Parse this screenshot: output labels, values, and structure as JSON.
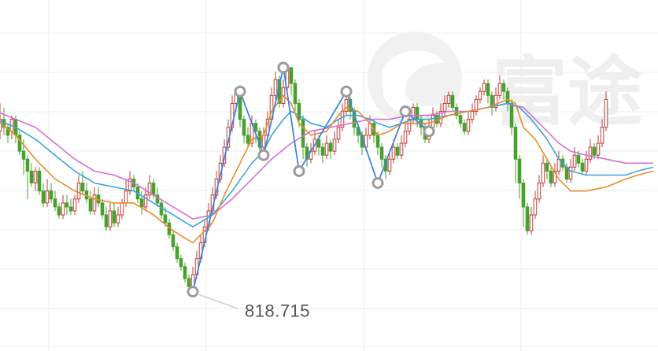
{
  "watermark": {
    "logo_icon": "futu-logo-icon",
    "text": "富途"
  },
  "colors": {
    "up": "#c23b33",
    "down": "#48a12f",
    "ma_fast": "#e98b2a",
    "ma_mid": "#3ba4e0",
    "ma_slow": "#d86fd6",
    "zigzag": "#3f86e0",
    "marker": "#9c9c9c",
    "grid": "#ececec",
    "callout_line": "#d8d8d8",
    "callout_text": "#555555"
  },
  "chart_data": {
    "type": "candlestick",
    "ylim": [
      805,
      890
    ],
    "grid": true,
    "low_label": "818.715",
    "zigzag_points": [
      {
        "x": 50,
        "y": 818.715
      },
      {
        "x": 62,
        "y": 869
      },
      {
        "x": 68,
        "y": 853
      },
      {
        "x": 73,
        "y": 875
      },
      {
        "x": 77,
        "y": 849
      },
      {
        "x": 89,
        "y": 869
      },
      {
        "x": 97,
        "y": 846
      },
      {
        "x": 104,
        "y": 864
      },
      {
        "x": 110,
        "y": 859
      }
    ],
    "ma_fast": [
      [
        0,
        862
      ],
      [
        5,
        858
      ],
      [
        10,
        852
      ],
      [
        15,
        847
      ],
      [
        20,
        844
      ],
      [
        25,
        842
      ],
      [
        30,
        841
      ],
      [
        35,
        841
      ],
      [
        40,
        838
      ],
      [
        45,
        834
      ],
      [
        50,
        831
      ],
      [
        55,
        836
      ],
      [
        58,
        843
      ],
      [
        62,
        851
      ],
      [
        65,
        857
      ],
      [
        68,
        858
      ],
      [
        70,
        864
      ],
      [
        73,
        868
      ],
      [
        75,
        866
      ],
      [
        77,
        861
      ],
      [
        80,
        858
      ],
      [
        84,
        859
      ],
      [
        87,
        863
      ],
      [
        89,
        865
      ],
      [
        92,
        864
      ],
      [
        95,
        861
      ],
      [
        97,
        858
      ],
      [
        100,
        859
      ],
      [
        103,
        861
      ],
      [
        106,
        861
      ],
      [
        110,
        861
      ],
      [
        115,
        863
      ],
      [
        120,
        864
      ],
      [
        125,
        865
      ],
      [
        130,
        867
      ],
      [
        132,
        866
      ],
      [
        134,
        860
      ],
      [
        137,
        857
      ],
      [
        140,
        852
      ],
      [
        143,
        847
      ],
      [
        146,
        844
      ],
      [
        150,
        844
      ],
      [
        155,
        845
      ],
      [
        160,
        847
      ],
      [
        163,
        848
      ],
      [
        167,
        849
      ]
    ],
    "ma_mid": [
      [
        0,
        862
      ],
      [
        5,
        860
      ],
      [
        10,
        857
      ],
      [
        15,
        853
      ],
      [
        20,
        849
      ],
      [
        25,
        846
      ],
      [
        30,
        845
      ],
      [
        35,
        844
      ],
      [
        40,
        841
      ],
      [
        45,
        838
      ],
      [
        50,
        835
      ],
      [
        55,
        838
      ],
      [
        60,
        844
      ],
      [
        65,
        851
      ],
      [
        68,
        854
      ],
      [
        70,
        858
      ],
      [
        73,
        862
      ],
      [
        75,
        864
      ],
      [
        77,
        863
      ],
      [
        80,
        861
      ],
      [
        84,
        860
      ],
      [
        87,
        862
      ],
      [
        89,
        863
      ],
      [
        92,
        863
      ],
      [
        95,
        862
      ],
      [
        97,
        861
      ],
      [
        100,
        860
      ],
      [
        103,
        861
      ],
      [
        106,
        862
      ],
      [
        110,
        862
      ],
      [
        115,
        863
      ],
      [
        120,
        864
      ],
      [
        125,
        865
      ],
      [
        130,
        866
      ],
      [
        133,
        865
      ],
      [
        136,
        862
      ],
      [
        140,
        857
      ],
      [
        143,
        852
      ],
      [
        146,
        849
      ],
      [
        150,
        848
      ],
      [
        155,
        848
      ],
      [
        160,
        848
      ],
      [
        163,
        849
      ],
      [
        167,
        850
      ]
    ],
    "ma_slow": [
      [
        0,
        864
      ],
      [
        5,
        862
      ],
      [
        10,
        860
      ],
      [
        15,
        856
      ],
      [
        20,
        852
      ],
      [
        25,
        849
      ],
      [
        30,
        848
      ],
      [
        35,
        846
      ],
      [
        40,
        843
      ],
      [
        45,
        840
      ],
      [
        50,
        837
      ],
      [
        55,
        838
      ],
      [
        60,
        842
      ],
      [
        65,
        847
      ],
      [
        70,
        852
      ],
      [
        75,
        856
      ],
      [
        80,
        859
      ],
      [
        85,
        860
      ],
      [
        90,
        861
      ],
      [
        95,
        862
      ],
      [
        100,
        862
      ],
      [
        105,
        863
      ],
      [
        110,
        863
      ],
      [
        115,
        864
      ],
      [
        120,
        864
      ],
      [
        125,
        865
      ],
      [
        130,
        866
      ],
      [
        134,
        865
      ],
      [
        137,
        862
      ],
      [
        140,
        859
      ],
      [
        143,
        856
      ],
      [
        146,
        854
      ],
      [
        150,
        853
      ],
      [
        155,
        852
      ],
      [
        160,
        851
      ],
      [
        163,
        851
      ],
      [
        167,
        851
      ]
    ],
    "candles": [
      [
        863,
        866,
        859,
        858
      ],
      [
        859,
        862,
        866,
        857
      ],
      [
        862,
        860,
        865,
        858
      ],
      [
        860,
        858,
        861,
        856
      ],
      [
        859,
        862,
        863,
        857
      ],
      [
        862,
        858,
        863,
        856
      ],
      [
        858,
        854,
        859,
        853
      ],
      [
        854,
        852,
        857,
        848
      ],
      [
        852,
        849,
        853,
        842
      ],
      [
        849,
        846,
        851,
        845
      ],
      [
        846,
        849,
        850,
        844
      ],
      [
        849,
        844,
        850,
        843
      ],
      [
        844,
        841,
        846,
        840
      ],
      [
        841,
        844,
        847,
        840
      ],
      [
        844,
        842,
        846,
        841
      ],
      [
        842,
        840,
        844,
        839
      ],
      [
        840,
        838,
        841,
        837
      ],
      [
        838,
        841,
        843,
        837
      ],
      [
        841,
        840,
        843,
        838
      ],
      [
        840,
        839,
        842,
        838
      ],
      [
        839,
        842,
        843,
        838
      ],
      [
        842,
        846,
        848,
        841
      ],
      [
        846,
        844,
        849,
        843
      ],
      [
        844,
        842,
        846,
        841
      ],
      [
        842,
        839,
        844,
        838
      ],
      [
        839,
        843,
        845,
        838
      ],
      [
        843,
        841,
        845,
        840
      ],
      [
        841,
        838,
        842,
        837
      ],
      [
        838,
        835,
        840,
        834
      ],
      [
        835,
        839,
        841,
        834
      ],
      [
        839,
        836,
        841,
        835
      ],
      [
        836,
        838,
        840,
        835
      ],
      [
        838,
        841,
        842,
        837
      ],
      [
        841,
        844,
        847,
        840
      ],
      [
        844,
        847,
        849,
        843
      ],
      [
        847,
        845,
        848,
        844
      ],
      [
        845,
        842,
        846,
        841
      ],
      [
        842,
        840,
        844,
        838
      ],
      [
        840,
        843,
        845,
        839
      ],
      [
        843,
        846,
        848,
        842
      ],
      [
        846,
        843,
        847,
        842
      ],
      [
        843,
        841,
        845,
        840
      ],
      [
        841,
        838,
        842,
        837
      ],
      [
        838,
        836,
        840,
        835
      ],
      [
        836,
        833,
        837,
        832
      ],
      [
        833,
        830,
        834,
        829
      ],
      [
        830,
        827,
        831,
        826
      ],
      [
        827,
        825,
        828,
        824
      ],
      [
        825,
        822,
        826,
        821
      ],
      [
        822,
        820,
        823,
        819
      ],
      [
        820,
        823,
        825,
        819
      ],
      [
        823,
        827,
        829,
        822
      ],
      [
        827,
        831,
        833,
        826
      ],
      [
        831,
        835,
        837,
        830
      ],
      [
        835,
        839,
        841,
        834
      ],
      [
        839,
        843,
        845,
        838
      ],
      [
        843,
        847,
        849,
        842
      ],
      [
        847,
        851,
        853,
        846
      ],
      [
        851,
        855,
        857,
        850
      ],
      [
        855,
        860,
        862,
        854
      ],
      [
        860,
        866,
        868,
        859
      ],
      [
        866,
        869,
        870,
        864
      ],
      [
        869,
        862,
        869,
        860
      ],
      [
        862,
        858,
        863,
        856
      ],
      [
        858,
        856,
        860,
        855
      ],
      [
        856,
        861,
        863,
        855
      ],
      [
        861,
        859,
        862,
        856
      ],
      [
        859,
        855,
        860,
        854
      ],
      [
        855,
        858,
        860,
        854
      ],
      [
        858,
        862,
        864,
        857
      ],
      [
        862,
        868,
        870,
        861
      ],
      [
        868,
        872,
        874,
        867
      ],
      [
        872,
        866,
        873,
        865
      ],
      [
        866,
        870,
        872,
        865
      ],
      [
        870,
        875,
        876,
        869
      ],
      [
        875,
        871,
        875,
        868
      ],
      [
        871,
        866,
        872,
        864
      ],
      [
        866,
        862,
        867,
        860
      ],
      [
        862,
        855,
        863,
        852
      ],
      [
        855,
        852,
        856,
        850
      ],
      [
        852,
        854,
        856,
        851
      ],
      [
        854,
        857,
        859,
        853
      ],
      [
        857,
        855,
        858,
        853
      ],
      [
        855,
        853,
        856,
        851
      ],
      [
        853,
        856,
        858,
        852
      ],
      [
        856,
        854,
        857,
        852
      ],
      [
        854,
        857,
        859,
        853
      ],
      [
        857,
        860,
        862,
        856
      ],
      [
        860,
        864,
        866,
        859
      ],
      [
        864,
        867,
        868,
        863
      ],
      [
        867,
        864,
        869,
        862
      ],
      [
        864,
        860,
        865,
        858
      ],
      [
        860,
        858,
        861,
        856
      ],
      [
        858,
        855,
        859,
        853
      ],
      [
        855,
        858,
        860,
        854
      ],
      [
        858,
        861,
        863,
        857
      ],
      [
        861,
        858,
        862,
        856
      ],
      [
        858,
        855,
        859,
        853
      ],
      [
        855,
        852,
        856,
        850
      ],
      [
        852,
        849,
        853,
        847
      ],
      [
        849,
        852,
        854,
        848
      ],
      [
        852,
        855,
        857,
        851
      ],
      [
        855,
        853,
        856,
        852
      ],
      [
        853,
        856,
        858,
        852
      ],
      [
        856,
        859,
        861,
        855
      ],
      [
        859,
        862,
        864,
        858
      ],
      [
        862,
        865,
        866,
        861
      ],
      [
        865,
        862,
        866,
        860
      ],
      [
        862,
        860,
        863,
        858
      ],
      [
        860,
        857,
        861,
        856
      ],
      [
        857,
        860,
        862,
        856
      ],
      [
        860,
        863,
        865,
        859
      ],
      [
        863,
        861,
        864,
        860
      ],
      [
        861,
        864,
        866,
        860
      ],
      [
        864,
        866,
        868,
        863
      ],
      [
        866,
        868,
        869,
        865
      ],
      [
        868,
        865,
        869,
        864
      ],
      [
        865,
        863,
        866,
        862
      ],
      [
        863,
        861,
        864,
        860
      ],
      [
        861,
        859,
        862,
        858
      ],
      [
        859,
        862,
        864,
        858
      ],
      [
        862,
        864,
        866,
        861
      ],
      [
        864,
        867,
        868,
        863
      ],
      [
        867,
        869,
        870,
        866
      ],
      [
        869,
        871,
        872,
        868
      ],
      [
        871,
        868,
        872,
        866
      ],
      [
        868,
        865,
        869,
        863
      ],
      [
        865,
        868,
        870,
        864
      ],
      [
        868,
        871,
        873,
        867
      ],
      [
        871,
        869,
        872,
        867
      ],
      [
        869,
        866,
        870,
        864
      ],
      [
        866,
        860,
        867,
        858
      ],
      [
        860,
        852,
        861,
        846
      ],
      [
        852,
        846,
        853,
        842
      ],
      [
        846,
        840,
        847,
        835
      ],
      [
        840,
        834,
        841,
        833
      ],
      [
        834,
        838,
        840,
        833
      ],
      [
        838,
        842,
        844,
        837
      ],
      [
        842,
        846,
        848,
        841
      ],
      [
        846,
        851,
        853,
        845
      ],
      [
        851,
        849,
        852,
        847
      ],
      [
        849,
        846,
        850,
        845
      ],
      [
        846,
        849,
        851,
        845
      ],
      [
        849,
        852,
        854,
        848
      ],
      [
        852,
        850,
        853,
        849
      ],
      [
        850,
        847,
        851,
        846
      ],
      [
        847,
        850,
        852,
        846
      ],
      [
        850,
        853,
        855,
        849
      ],
      [
        853,
        851,
        854,
        850
      ],
      [
        851,
        849,
        852,
        848
      ],
      [
        849,
        852,
        854,
        848
      ],
      [
        852,
        855,
        857,
        851
      ],
      [
        855,
        853,
        856,
        852
      ],
      [
        853,
        856,
        858,
        852
      ],
      [
        856,
        860,
        862,
        855
      ],
      [
        860,
        867,
        869,
        859
      ]
    ]
  }
}
